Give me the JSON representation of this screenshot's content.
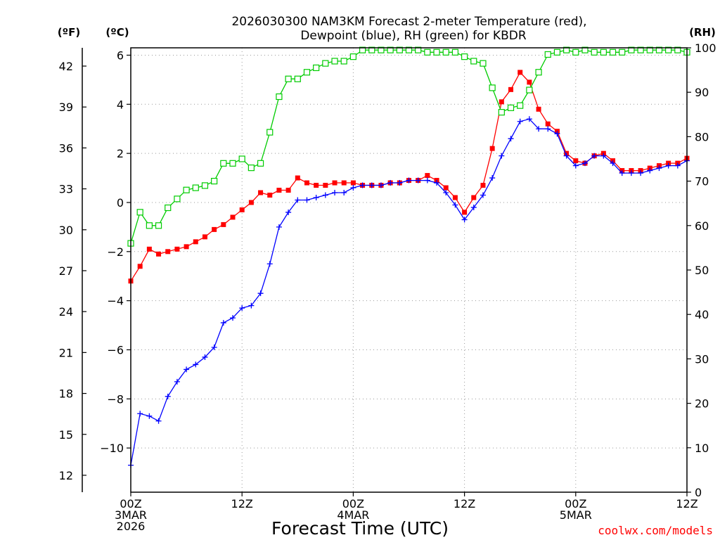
{
  "chart_data": {
    "type": "line",
    "title": [
      "2026030300 NAM3KM Forecast 2-meter Temperature (red),",
      "Dewpoint (blue), RH (green) for KBDR"
    ],
    "xlabel": "Forecast Time (UTC)",
    "credit": "coolwx.com/models",
    "units": {
      "fahrenheit": "(ºF)",
      "celsius": "(ºC)",
      "rh": "(RH)"
    },
    "xlim": [
      0,
      60
    ],
    "x_ticks": [
      {
        "x": 0,
        "lines": [
          "00Z",
          "3MAR",
          "2026"
        ]
      },
      {
        "x": 12,
        "lines": [
          "12Z"
        ]
      },
      {
        "x": 24,
        "lines": [
          "00Z",
          "4MAR"
        ]
      },
      {
        "x": 36,
        "lines": [
          "12Z"
        ]
      },
      {
        "x": 48,
        "lines": [
          "00Z",
          "5MAR"
        ]
      },
      {
        "x": 60,
        "lines": [
          "12Z"
        ]
      }
    ],
    "ylim_c": [
      -11.8,
      6.3
    ],
    "y_ticks_c": [
      6,
      4,
      2,
      0,
      -2,
      -4,
      -6,
      -8,
      -10
    ],
    "y_ticks_f": [
      42,
      39,
      36,
      33,
      30,
      27,
      24,
      21,
      18,
      15,
      12
    ],
    "ylim_rh": [
      0,
      100
    ],
    "y_ticks_rh": [
      0,
      10,
      20,
      30,
      40,
      50,
      60,
      70,
      80,
      90,
      100
    ],
    "colors": {
      "temperature": "#ff0000",
      "dewpoint": "#0000ff",
      "rh": "#00cc00",
      "credit": "#ff0000"
    },
    "series": [
      {
        "name": "Temperature (red)",
        "axis": "celsius",
        "values": [
          -3.2,
          -2.6,
          -1.9,
          -2.1,
          -2.0,
          -1.9,
          -1.8,
          -1.6,
          -1.4,
          -1.1,
          -0.9,
          -0.6,
          -0.3,
          0.0,
          0.4,
          0.3,
          0.5,
          0.5,
          1.0,
          0.8,
          0.7,
          0.7,
          0.8,
          0.8,
          0.8,
          0.7,
          0.7,
          0.7,
          0.8,
          0.8,
          0.9,
          0.9,
          1.1,
          0.9,
          0.6,
          0.2,
          -0.4,
          0.2,
          0.7,
          2.2,
          4.1,
          4.6,
          5.3,
          4.9,
          3.8,
          3.2,
          2.9,
          2.0,
          1.7,
          1.6,
          1.9,
          2.0,
          1.7,
          1.3,
          1.3,
          1.3,
          1.4,
          1.5,
          1.6,
          1.6,
          1.8
        ]
      },
      {
        "name": "Dewpoint (blue)",
        "axis": "celsius",
        "values": [
          -10.7,
          -8.6,
          -8.7,
          -8.9,
          -7.9,
          -7.3,
          -6.8,
          -6.6,
          -6.3,
          -5.9,
          -4.9,
          -4.7,
          -4.3,
          -4.2,
          -3.7,
          -2.5,
          -1.0,
          -0.4,
          0.1,
          0.1,
          0.2,
          0.3,
          0.4,
          0.4,
          0.6,
          0.7,
          0.7,
          0.7,
          0.8,
          0.8,
          0.9,
          0.9,
          0.9,
          0.8,
          0.4,
          -0.1,
          -0.7,
          -0.2,
          0.3,
          1.0,
          1.9,
          2.6,
          3.3,
          3.4,
          3.0,
          3.0,
          2.8,
          1.9,
          1.5,
          1.6,
          1.9,
          1.9,
          1.6,
          1.2,
          1.2,
          1.2,
          1.3,
          1.4,
          1.5,
          1.5,
          1.7
        ]
      },
      {
        "name": "RH (green)",
        "axis": "rh",
        "values": [
          56,
          63,
          60,
          60,
          64,
          66,
          68,
          68.5,
          69,
          70,
          74,
          74,
          75,
          73,
          74,
          81,
          89,
          93,
          93,
          94.5,
          95.5,
          96.5,
          97,
          97,
          98,
          99.5,
          99.5,
          99.5,
          99.5,
          99.5,
          99.5,
          99.5,
          99,
          99,
          99,
          99,
          98,
          97,
          96.5,
          91,
          85.5,
          86.5,
          87,
          90.5,
          94.5,
          98.5,
          99,
          99.5,
          99,
          99.5,
          99,
          99,
          99,
          99,
          99.5,
          99.5,
          99.5,
          99.5,
          99.5,
          99.5,
          99
        ]
      }
    ]
  }
}
